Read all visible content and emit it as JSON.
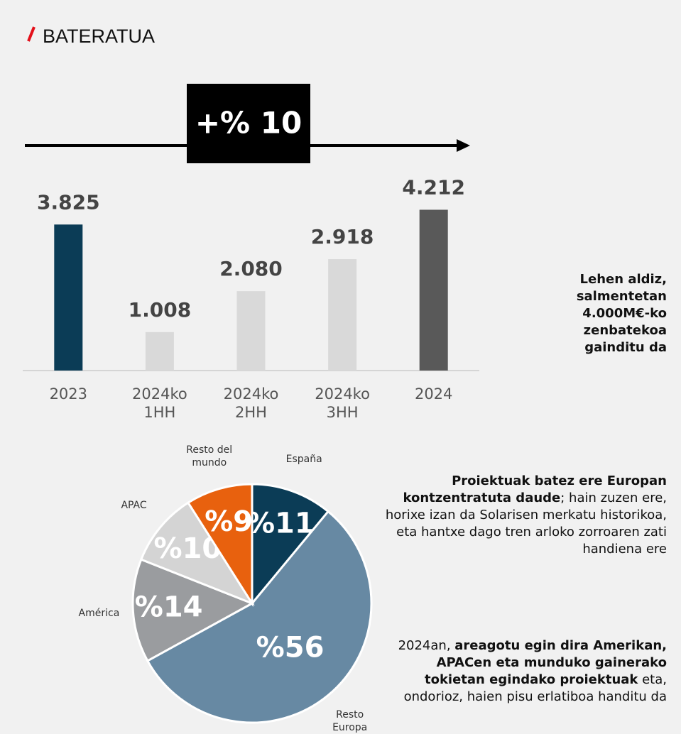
{
  "header": {
    "title": "BATERATUA"
  },
  "growth": "+% 10",
  "notes": [
    [
      {
        "text": "Lehen aldiz, salmentetan 4.000M€-ko zenbatekoa gainditu da",
        "bold": true
      }
    ],
    [
      {
        "text": "Proiektuak batez ere Europan kontzentratuta daude",
        "bold": true
      },
      {
        "text": "; hain zuzen ere, horixe izan da Solarisen merkatu historikoa, eta hantxe dago tren arloko zorroaren zati handiena ere",
        "bold": false
      }
    ],
    [
      {
        "text": "2024an, ",
        "bold": false
      },
      {
        "text": "areagotu egin dira Amerikan, APACen eta munduko gainerako tokietan egindako proiektuak",
        "bold": true
      },
      {
        "text": " eta, ondorioz, haien pisu erlatiboa handitu da",
        "bold": false
      }
    ]
  ],
  "chart_data": [
    {
      "type": "bar",
      "categories": [
        "2023",
        "2024ko 1HH",
        "2024ko 2HH",
        "2024ko 3HH",
        "2024"
      ],
      "values": [
        3825,
        1008,
        2080,
        2918,
        4212
      ],
      "value_labels": [
        "3.825",
        "1.008",
        "2.080",
        "2.918",
        "4.212"
      ],
      "colors": [
        "#0b3c56",
        "#d9d9d9",
        "#d9d9d9",
        "#d9d9d9",
        "#595959"
      ],
      "ylim": [
        0,
        4500
      ]
    },
    {
      "type": "pie",
      "categories": [
        "España",
        "Resto Europa",
        "América",
        "APAC",
        "Resto del mundo"
      ],
      "values": [
        11,
        56,
        14,
        10,
        9
      ],
      "value_labels": [
        "%11",
        "%56",
        "%14",
        "%10",
        "%9"
      ],
      "colors": [
        "#0b3c56",
        "#6789a3",
        "#9a9c9f",
        "#d4d4d4",
        "#e8610e"
      ]
    }
  ]
}
